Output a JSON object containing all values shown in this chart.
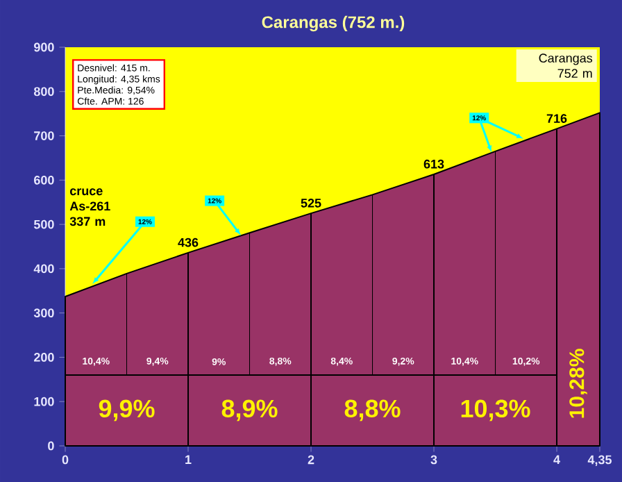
{
  "chart_data": {
    "type": "area",
    "title": "Carangas (752 m.)",
    "x": [
      0,
      0.5,
      1,
      1.5,
      2,
      2.5,
      3,
      3.5,
      4,
      4.35
    ],
    "values": [
      337,
      389,
      436,
      481,
      525,
      567,
      613,
      665,
      716,
      752
    ],
    "value_labels": [
      null,
      null,
      "436",
      null,
      "525",
      null,
      "613",
      null,
      "716",
      null
    ],
    "color": "#993366",
    "xlim": [
      0,
      4.35
    ],
    "xticks": [
      0,
      1,
      2,
      3,
      4,
      {
        "value": 4.35,
        "label": "4,35"
      }
    ],
    "ylim": [
      0,
      900
    ],
    "yticks": [
      0,
      100,
      200,
      300,
      400,
      500,
      600,
      700,
      800,
      900
    ],
    "grid": "x",
    "ref_lines": [
      {
        "axis": "y",
        "value": 160,
        "color": "#000000"
      }
    ],
    "annotations": [
      "Desnivel: 415 m.",
      "Longitud: 4,35 kms",
      "Pte.Media: 9,54%",
      "Cfte. APM: 126",
      "cruce As-261 337 m",
      "Carangas 752 m",
      "10,4%",
      "9,4%",
      "9%",
      "8,8%",
      "8,4%",
      "9,2%",
      "10,4%",
      "10,2%",
      "9,9%",
      "8,9%",
      "8,8%",
      "10,3%",
      "10,28%",
      {
        "text": "12%",
        "x": 0.22,
        "y": 365
      },
      {
        "text": "12%",
        "x": 1.43,
        "y": 475
      },
      {
        "text": "12%",
        "x": 3.47,
        "y": 662
      }
    ]
  }
}
